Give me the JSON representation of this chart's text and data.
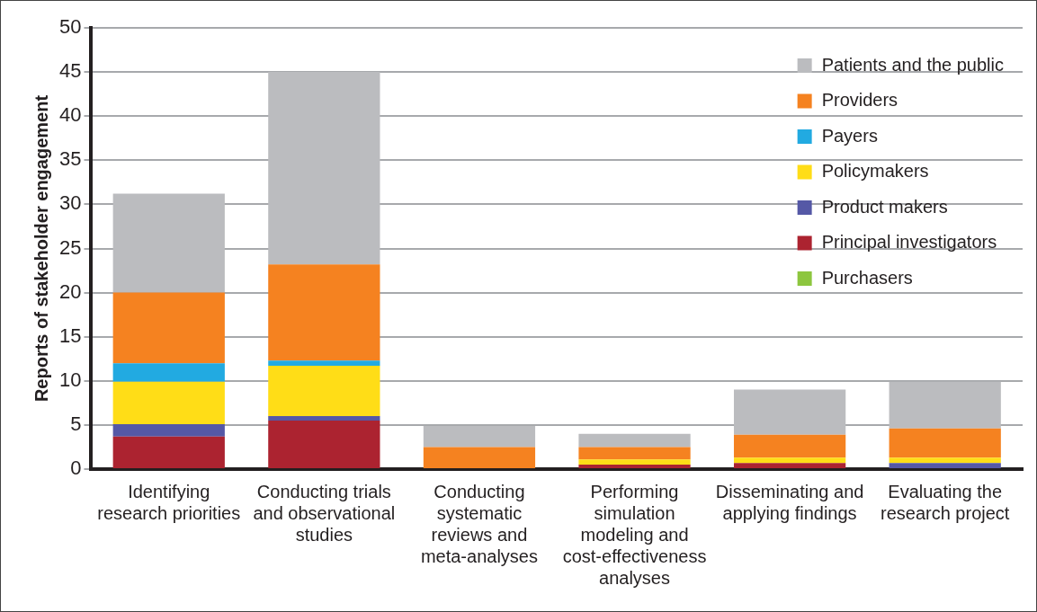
{
  "chart_data": {
    "type": "bar",
    "stacked": true,
    "ylabel": "Reports of stakeholder engagement",
    "categories": [
      "Identifying research priorities",
      "Conducting trials and observational studies",
      "Conducting systematic reviews and meta-analyses",
      "Performing simulation modeling and cost-effectiveness analyses",
      "Disseminating and applying findings",
      "Evaluating the research project"
    ],
    "series": [
      {
        "name": "Purchasers",
        "color": "#8dc63f",
        "values": [
          0,
          0,
          0,
          0,
          0,
          0
        ]
      },
      {
        "name": "Principal investigators",
        "color": "#ac2330",
        "values": [
          3.7,
          5.5,
          0,
          0.5,
          0.7,
          0
        ]
      },
      {
        "name": "Product makers",
        "color": "#5558a6",
        "values": [
          1.4,
          0.5,
          0,
          0,
          0,
          0.7
        ]
      },
      {
        "name": "Policymakers",
        "color": "#ffdd17",
        "values": [
          4.8,
          5.7,
          0,
          0.6,
          0.6,
          0.6
        ]
      },
      {
        "name": "Payers",
        "color": "#22aae1",
        "values": [
          2.1,
          0.6,
          0,
          0,
          0,
          0
        ]
      },
      {
        "name": "Providers",
        "color": "#f58220",
        "values": [
          8,
          10.9,
          2.5,
          1.4,
          2.6,
          3.3
        ]
      },
      {
        "name": "Patients and the public",
        "color": "#bbbcbf",
        "values": [
          11.2,
          21.8,
          2.4,
          1.5,
          5.1,
          5.3
        ]
      }
    ],
    "ylim": [
      0,
      50
    ],
    "yticks": [
      0,
      5,
      10,
      15,
      20,
      25,
      30,
      35,
      40,
      45,
      50
    ],
    "grid": "y",
    "legend": "top right"
  }
}
